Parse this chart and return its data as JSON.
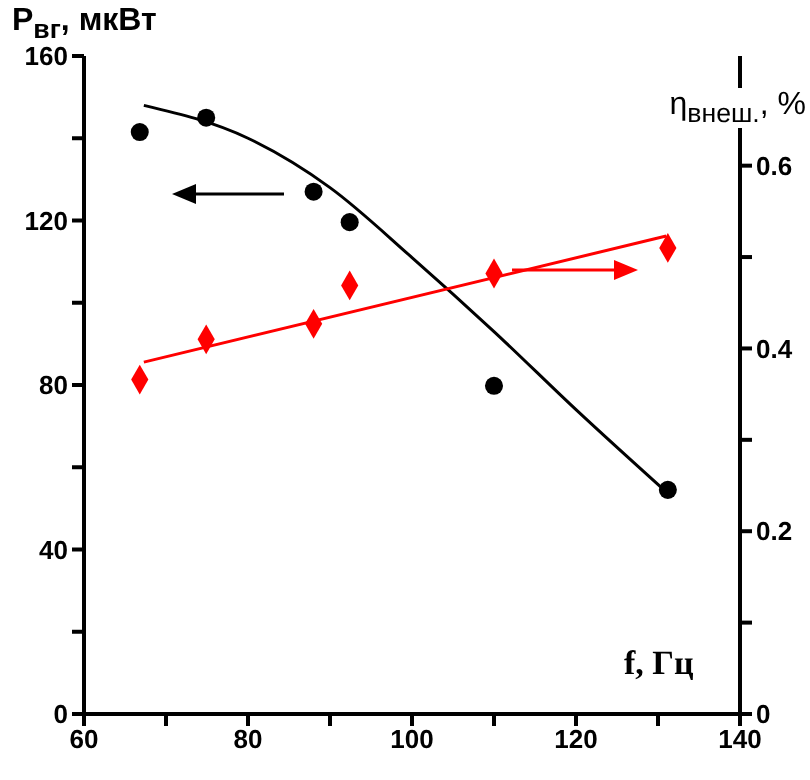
{
  "chart_data": {
    "type": "scatter",
    "xlabel": "f, Гц",
    "ylabel": "P$_{вг}$, мкВт",
    "y2label": "η$_{внеш.}$, %",
    "xlim": [
      60,
      140
    ],
    "xticks": [
      60,
      {
        "value": 70,
        "label": null
      },
      80,
      {
        "value": 90,
        "label": null
      },
      100,
      {
        "value": 110,
        "label": null
      },
      120,
      {
        "value": 130,
        "label": null
      },
      140
    ],
    "ylim": [
      0,
      160
    ],
    "yticks": [
      0,
      {
        "value": 20,
        "label": null
      },
      40,
      {
        "value": 60,
        "label": null
      },
      80,
      {
        "value": 100,
        "label": null
      },
      120,
      {
        "value": 140,
        "label": null
      },
      160
    ],
    "y2lim": [
      0,
      0.72
    ],
    "y2ticks": [
      0,
      {
        "value": 0.1,
        "label": null
      },
      0.2,
      {
        "value": 0.3,
        "label": null
      },
      0.4,
      {
        "value": 0.5,
        "label": null
      },
      0.6
    ],
    "grid": false,
    "series": [
      {
        "color": "#000000",
        "marker": "circle",
        "x": [
          66.8,
          74.9,
          88,
          92.4,
          110,
          131.2
        ],
        "values": [
          141.5,
          145,
          127,
          119.6,
          79.8,
          54.5
        ]
      },
      {
        "type": "line",
        "color": "#000000",
        "marker": "none",
        "x": [
          67.3,
          80,
          90,
          100,
          110,
          120,
          131
        ],
        "values": [
          148,
          140,
          128,
          111,
          93,
          74,
          54
        ]
      },
      {
        "color": "#ff0000",
        "marker": "diamond",
        "axis": "y2",
        "x": [
          66.8,
          74.9,
          88,
          92.4,
          110,
          131.2
        ],
        "values": [
          0.366,
          0.41,
          0.427,
          0.469,
          0.482,
          0.51
        ]
      },
      {
        "type": "line",
        "color": "#ff0000",
        "marker": "none",
        "axis": "y2",
        "x": [
          67.3,
          131
        ],
        "values": [
          0.385,
          0.523
        ]
      }
    ]
  }
}
